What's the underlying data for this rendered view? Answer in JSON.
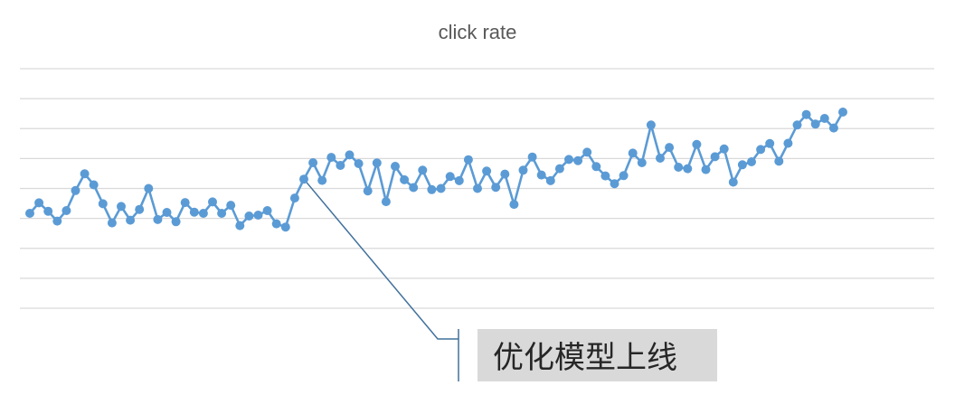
{
  "chart_data": {
    "type": "line",
    "title": "click rate",
    "xlabel": "",
    "ylabel": "",
    "y_ticks_shown": false,
    "grid": true,
    "legend": "none",
    "ylim": [
      0,
      8
    ],
    "series": [
      {
        "color": "#5b9bd5",
        "values": [
          3.17,
          3.52,
          3.24,
          2.91,
          3.26,
          3.93,
          4.49,
          4.12,
          3.49,
          2.85,
          3.4,
          2.94,
          3.3,
          4.0,
          2.96,
          3.2,
          2.89,
          3.53,
          3.21,
          3.17,
          3.55,
          3.17,
          3.44,
          2.76,
          3.08,
          3.11,
          3.26,
          2.82,
          2.71,
          3.68,
          4.31,
          4.86,
          4.27,
          5.04,
          4.77,
          5.12,
          4.83,
          3.92,
          4.85,
          3.56,
          4.74,
          4.29,
          4.03,
          4.61,
          3.96,
          4.0,
          4.4,
          4.26,
          4.96,
          4.0,
          4.58,
          4.04,
          4.48,
          3.47,
          4.61,
          5.05,
          4.45,
          4.26,
          4.66,
          4.97,
          4.93,
          5.21,
          4.73,
          4.42,
          4.16,
          4.43,
          5.18,
          4.86,
          6.12,
          5.01,
          5.37,
          4.71,
          4.66,
          5.47,
          4.63,
          5.06,
          5.32,
          4.21,
          4.79,
          4.89,
          5.3,
          5.5,
          4.91,
          5.51,
          6.12,
          6.47,
          6.15,
          6.34,
          6.02,
          6.55
        ]
      }
    ],
    "annotations": [
      {
        "text": "优化模型上线",
        "point_index": 30
      }
    ]
  }
}
